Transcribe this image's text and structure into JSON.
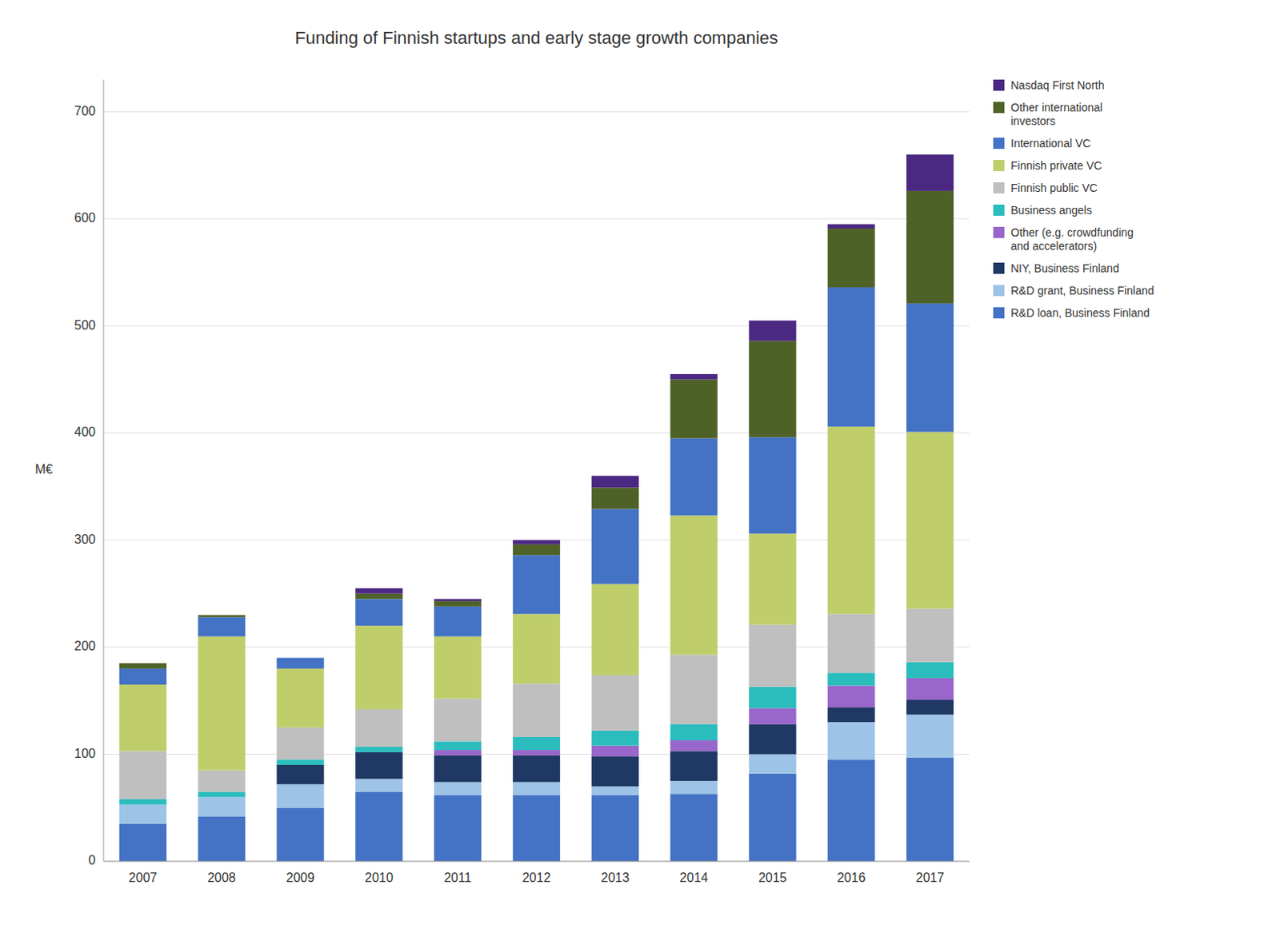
{
  "chart_data": {
    "type": "bar",
    "title": "Funding of Finnish startups and early stage growth companies",
    "y_label": "M€",
    "categories": [
      "2007",
      "2008",
      "2009",
      "2010",
      "2011",
      "2012",
      "2013",
      "2014",
      "2015",
      "2016",
      "2017"
    ],
    "stacked": true,
    "grid": true,
    "legend": "right",
    "ylim": [
      0,
      730
    ],
    "yticks": [
      0,
      100,
      200,
      300,
      400,
      500,
      600,
      700
    ],
    "series": [
      {
        "name": "R&D loan, Business Finland",
        "color": "#4472C4",
        "values": [
          35,
          42,
          50,
          65,
          62,
          62,
          62,
          63,
          82,
          95,
          97
        ]
      },
      {
        "name": "R&D grant, Business Finland",
        "color": "#9DC3E6",
        "values": [
          18,
          18,
          22,
          12,
          12,
          12,
          8,
          12,
          18,
          35,
          40
        ]
      },
      {
        "name": "NIY, Business Finland",
        "color": "#1F3864",
        "values": [
          0,
          0,
          18,
          25,
          25,
          25,
          28,
          28,
          28,
          14,
          14
        ]
      },
      {
        "name": "Other (e.g. crowdfunding\nand accelerators)",
        "color": "#9966CC",
        "values": [
          0,
          0,
          0,
          0,
          5,
          5,
          10,
          10,
          15,
          20,
          20
        ]
      },
      {
        "name": "Business angels",
        "color": "#2BBDBD",
        "values": [
          5,
          5,
          5,
          5,
          8,
          12,
          14,
          15,
          20,
          12,
          15
        ]
      },
      {
        "name": "Finnish public VC",
        "color": "#BFBFBF",
        "values": [
          45,
          20,
          30,
          35,
          40,
          50,
          52,
          65,
          58,
          55,
          50
        ]
      },
      {
        "name": "Finnish private VC",
        "color": "#BFCE6B",
        "values": [
          62,
          125,
          55,
          78,
          58,
          65,
          85,
          130,
          85,
          175,
          165
        ]
      },
      {
        "name": "International VC",
        "color": "#4472C4",
        "values": [
          15,
          18,
          10,
          25,
          28,
          55,
          70,
          72,
          90,
          130,
          120
        ]
      },
      {
        "name": "Other international\ninvestors",
        "color": "#4E6228",
        "values": [
          5,
          2,
          0,
          5,
          5,
          10,
          20,
          55,
          90,
          55,
          105
        ]
      },
      {
        "name": "Nasdaq First North",
        "color": "#4B2882",
        "values": [
          0,
          0,
          0,
          5,
          2,
          4,
          11,
          5,
          19,
          4,
          34
        ]
      }
    ]
  }
}
